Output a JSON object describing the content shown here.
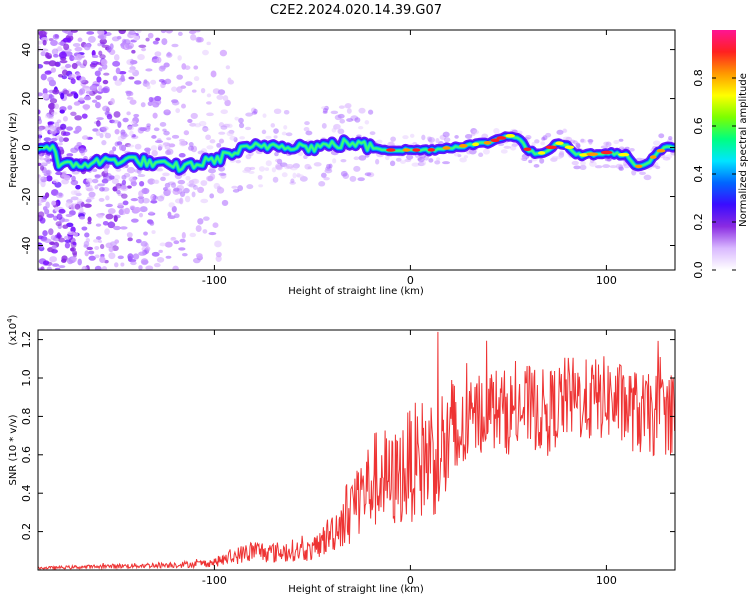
{
  "title": "C2E2.2024.020.14.39.G07",
  "chart_data": [
    {
      "type": "heatmap",
      "xlabel": "Height of straight line (km)",
      "ylabel": "Frequency (Hz)",
      "xlim": [
        -190,
        135
      ],
      "ylim": [
        -50,
        48
      ],
      "xticks": [
        -100,
        0,
        100
      ],
      "yticks": [
        -40,
        -20,
        0,
        20,
        40
      ],
      "colorbar": {
        "label": "Normalized spectral amplitude",
        "range": [
          0,
          1
        ],
        "ticks": [
          "0.0",
          "0.2",
          "0.4",
          "0.6",
          "0.8"
        ],
        "colors": [
          "#ffffff",
          "#d9b8ff",
          "#8a2be2",
          "#3a0cff",
          "#0066ff",
          "#00e5ff",
          "#00ff80",
          "#7cff00",
          "#ffff00",
          "#ff9900",
          "#ff2020",
          "#ff1493"
        ]
      },
      "ridge": {
        "name": "frequency ridge",
        "x": [
          -180,
          -160,
          -150,
          -140,
          -130,
          -120,
          -110,
          -100,
          -90,
          -80,
          -70,
          -60,
          -50,
          -40,
          -30,
          -20,
          -10,
          0,
          10,
          20,
          30,
          40,
          50,
          55,
          60,
          65,
          70,
          75,
          80,
          85,
          90,
          100,
          110,
          115,
          120,
          125,
          130,
          135
        ],
        "y": [
          -8,
          -6,
          -5,
          -5,
          -7,
          -8,
          -7,
          -5,
          -2,
          0,
          1,
          1,
          0,
          1,
          2,
          0,
          -1,
          -1,
          -1,
          0,
          1,
          2,
          5,
          4,
          -1,
          -3,
          -1,
          2,
          1,
          -3,
          -3,
          -2,
          -3,
          -8,
          -7,
          -3,
          0,
          0
        ]
      }
    },
    {
      "type": "line",
      "xlabel": "Height of straight line (km)",
      "ylabel": "SNR (10 * v/v)",
      "ylabel_scale": "(x10",
      "ylabel_exp": "4",
      "xlim": [
        -190,
        135
      ],
      "ylim": [
        0,
        1.25
      ],
      "xticks": [
        -100,
        0,
        100
      ],
      "yticks": [
        "0.2",
        "0.4",
        "0.6",
        "0.8",
        "1.0",
        "1.2"
      ],
      "ytick_values": [
        0.2,
        0.4,
        0.6,
        0.8,
        1.0,
        1.2
      ],
      "color": "#ee3333",
      "series": [
        {
          "x": [
            -190,
            -170,
            -150,
            -130,
            -110,
            -100,
            -90,
            -80,
            -70,
            -60,
            -50,
            -40,
            -35,
            -30,
            -25,
            -20,
            -15,
            -10,
            -5,
            0,
            10,
            20,
            25,
            30,
            35,
            40,
            50,
            60,
            70,
            80,
            90,
            100,
            110,
            120,
            135
          ],
          "values": [
            0.01,
            0.015,
            0.02,
            0.025,
            0.03,
            0.04,
            0.07,
            0.1,
            0.09,
            0.1,
            0.1,
            0.2,
            0.25,
            0.35,
            0.4,
            0.45,
            0.5,
            0.45,
            0.5,
            0.55,
            0.6,
            0.65,
            0.7,
            0.75,
            0.82,
            0.85,
            0.82,
            0.85,
            0.82,
            0.9,
            0.88,
            0.9,
            0.85,
            0.8,
            0.82
          ]
        }
      ]
    }
  ]
}
